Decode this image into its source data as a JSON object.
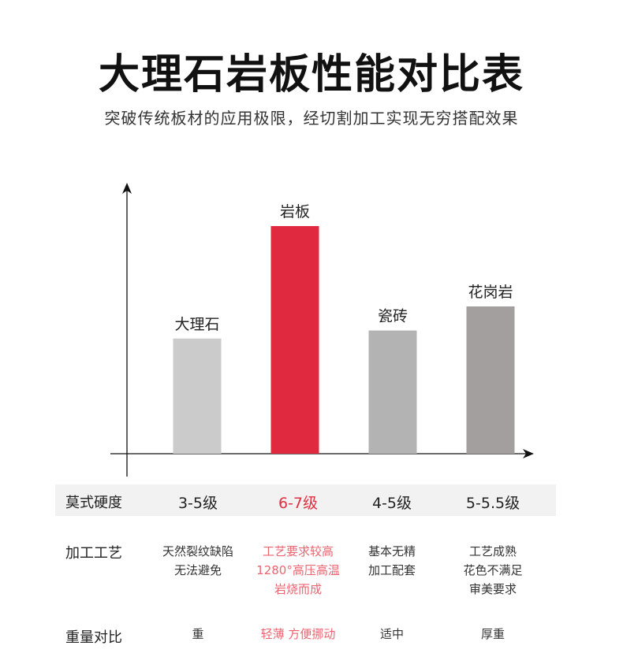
{
  "header": {
    "title": "大理石岩板性能对比表",
    "subtitle": "突破传统板材的应用极限，经切割加工实现无穷搭配效果"
  },
  "chart_data": {
    "type": "bar",
    "title": "",
    "xlabel": "",
    "ylabel": "",
    "categories": [
      "大理石",
      "岩板",
      "瓷砖",
      "花岗岩"
    ],
    "values": [
      0.43,
      0.85,
      0.46,
      0.55
    ],
    "ylim": [
      0,
      1
    ],
    "grid": false,
    "colors": [
      "#cbcbcb",
      "#e0293e",
      "#b3b3b3",
      "#a39f9f"
    ],
    "highlight_color": "#e0303f"
  },
  "table": {
    "rows": [
      {
        "label": "莫式硬度",
        "cells": [
          "3-5级",
          "6-7级",
          "4-5级",
          "5-5.5级"
        ]
      },
      {
        "label": "加工工艺",
        "cells": [
          [
            "天然裂纹缺陷",
            "无法避免"
          ],
          [
            "工艺要求较高",
            "1280°高压高温",
            "岩烧而成"
          ],
          [
            "基本无精",
            "加工配套"
          ],
          [
            "工艺成熟",
            "花色不满足",
            "审美要求"
          ]
        ]
      },
      {
        "label": "重量对比",
        "cells": [
          "重",
          "轻薄 方便挪动",
          "适中",
          "厚重"
        ]
      }
    ]
  }
}
